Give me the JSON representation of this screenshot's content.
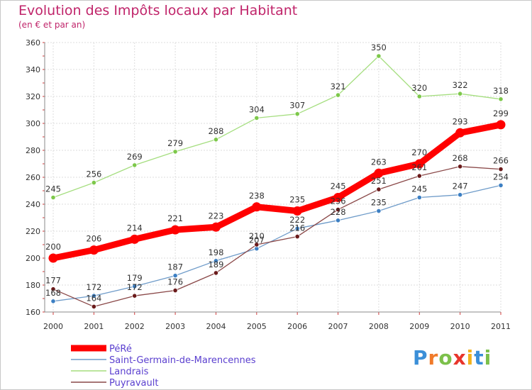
{
  "chart_data": {
    "type": "line",
    "title": "Evolution des Impôts locaux par Habitant",
    "subtitle": "(en € et par an)",
    "x": [
      "2000",
      "2001",
      "2002",
      "2003",
      "2004",
      "2005",
      "2006",
      "2007",
      "2008",
      "2009",
      "2010",
      "2011"
    ],
    "ylim": [
      160,
      360
    ],
    "yticks": [
      "160",
      "180",
      "200",
      "220",
      "240",
      "260",
      "280",
      "300",
      "320",
      "340",
      "360"
    ],
    "grid": true,
    "legend_position": "bottom-left",
    "series": [
      {
        "name": "Saint-Germain-de-Marencennes",
        "color": "#6e9bc9",
        "marker": "#3c7fc3",
        "values": [
          168,
          172,
          179,
          187,
          198,
          207,
          222,
          228,
          235,
          245,
          247,
          254
        ],
        "labels": [
          "168",
          "172",
          "179",
          "187",
          "198",
          "207",
          "222",
          "228",
          "235",
          "245",
          "247",
          "254"
        ]
      },
      {
        "name": "Landrais",
        "color": "#a5de7f",
        "marker": "#7dc84a",
        "values": [
          245,
          256,
          269,
          279,
          288,
          304,
          307,
          321,
          350,
          320,
          322,
          318
        ],
        "labels": [
          "245",
          "256",
          "269",
          "279",
          "288",
          "304",
          "307",
          "321",
          "350",
          "320",
          "322",
          "318"
        ]
      },
      {
        "name": "Puyravault",
        "color": "#8a4848",
        "marker": "#6a1a1a",
        "values": [
          177,
          164,
          172,
          176,
          189,
          210,
          216,
          236,
          251,
          261,
          268,
          266
        ],
        "labels": [
          "177",
          "164",
          "172",
          "176",
          "189",
          "210",
          "216",
          "236",
          "251",
          "261",
          "268",
          "266"
        ]
      },
      {
        "name": "PéRé",
        "color": "#ff0000",
        "marker": "#ff0000",
        "values": [
          200,
          206,
          214,
          221,
          223,
          238,
          235,
          245,
          263,
          270,
          293,
          299
        ],
        "labels": [
          "200",
          "206",
          "214",
          "221",
          "223",
          "238",
          "235",
          "245",
          "263",
          "270",
          "293",
          "299"
        ]
      }
    ],
    "legend_order": [
      "PéRé",
      "Saint-Germain-de-Marencennes",
      "Landrais",
      "Puyravault"
    ]
  },
  "logo": {
    "letters": [
      "P",
      "r",
      "o",
      "x",
      "i",
      "t",
      "i"
    ],
    "colors": [
      "#3b8fd8",
      "#f07a2a",
      "#7cc04a",
      "#e8352b",
      "#f2b21c",
      "#3b8fd8",
      "#7cc04a"
    ]
  }
}
